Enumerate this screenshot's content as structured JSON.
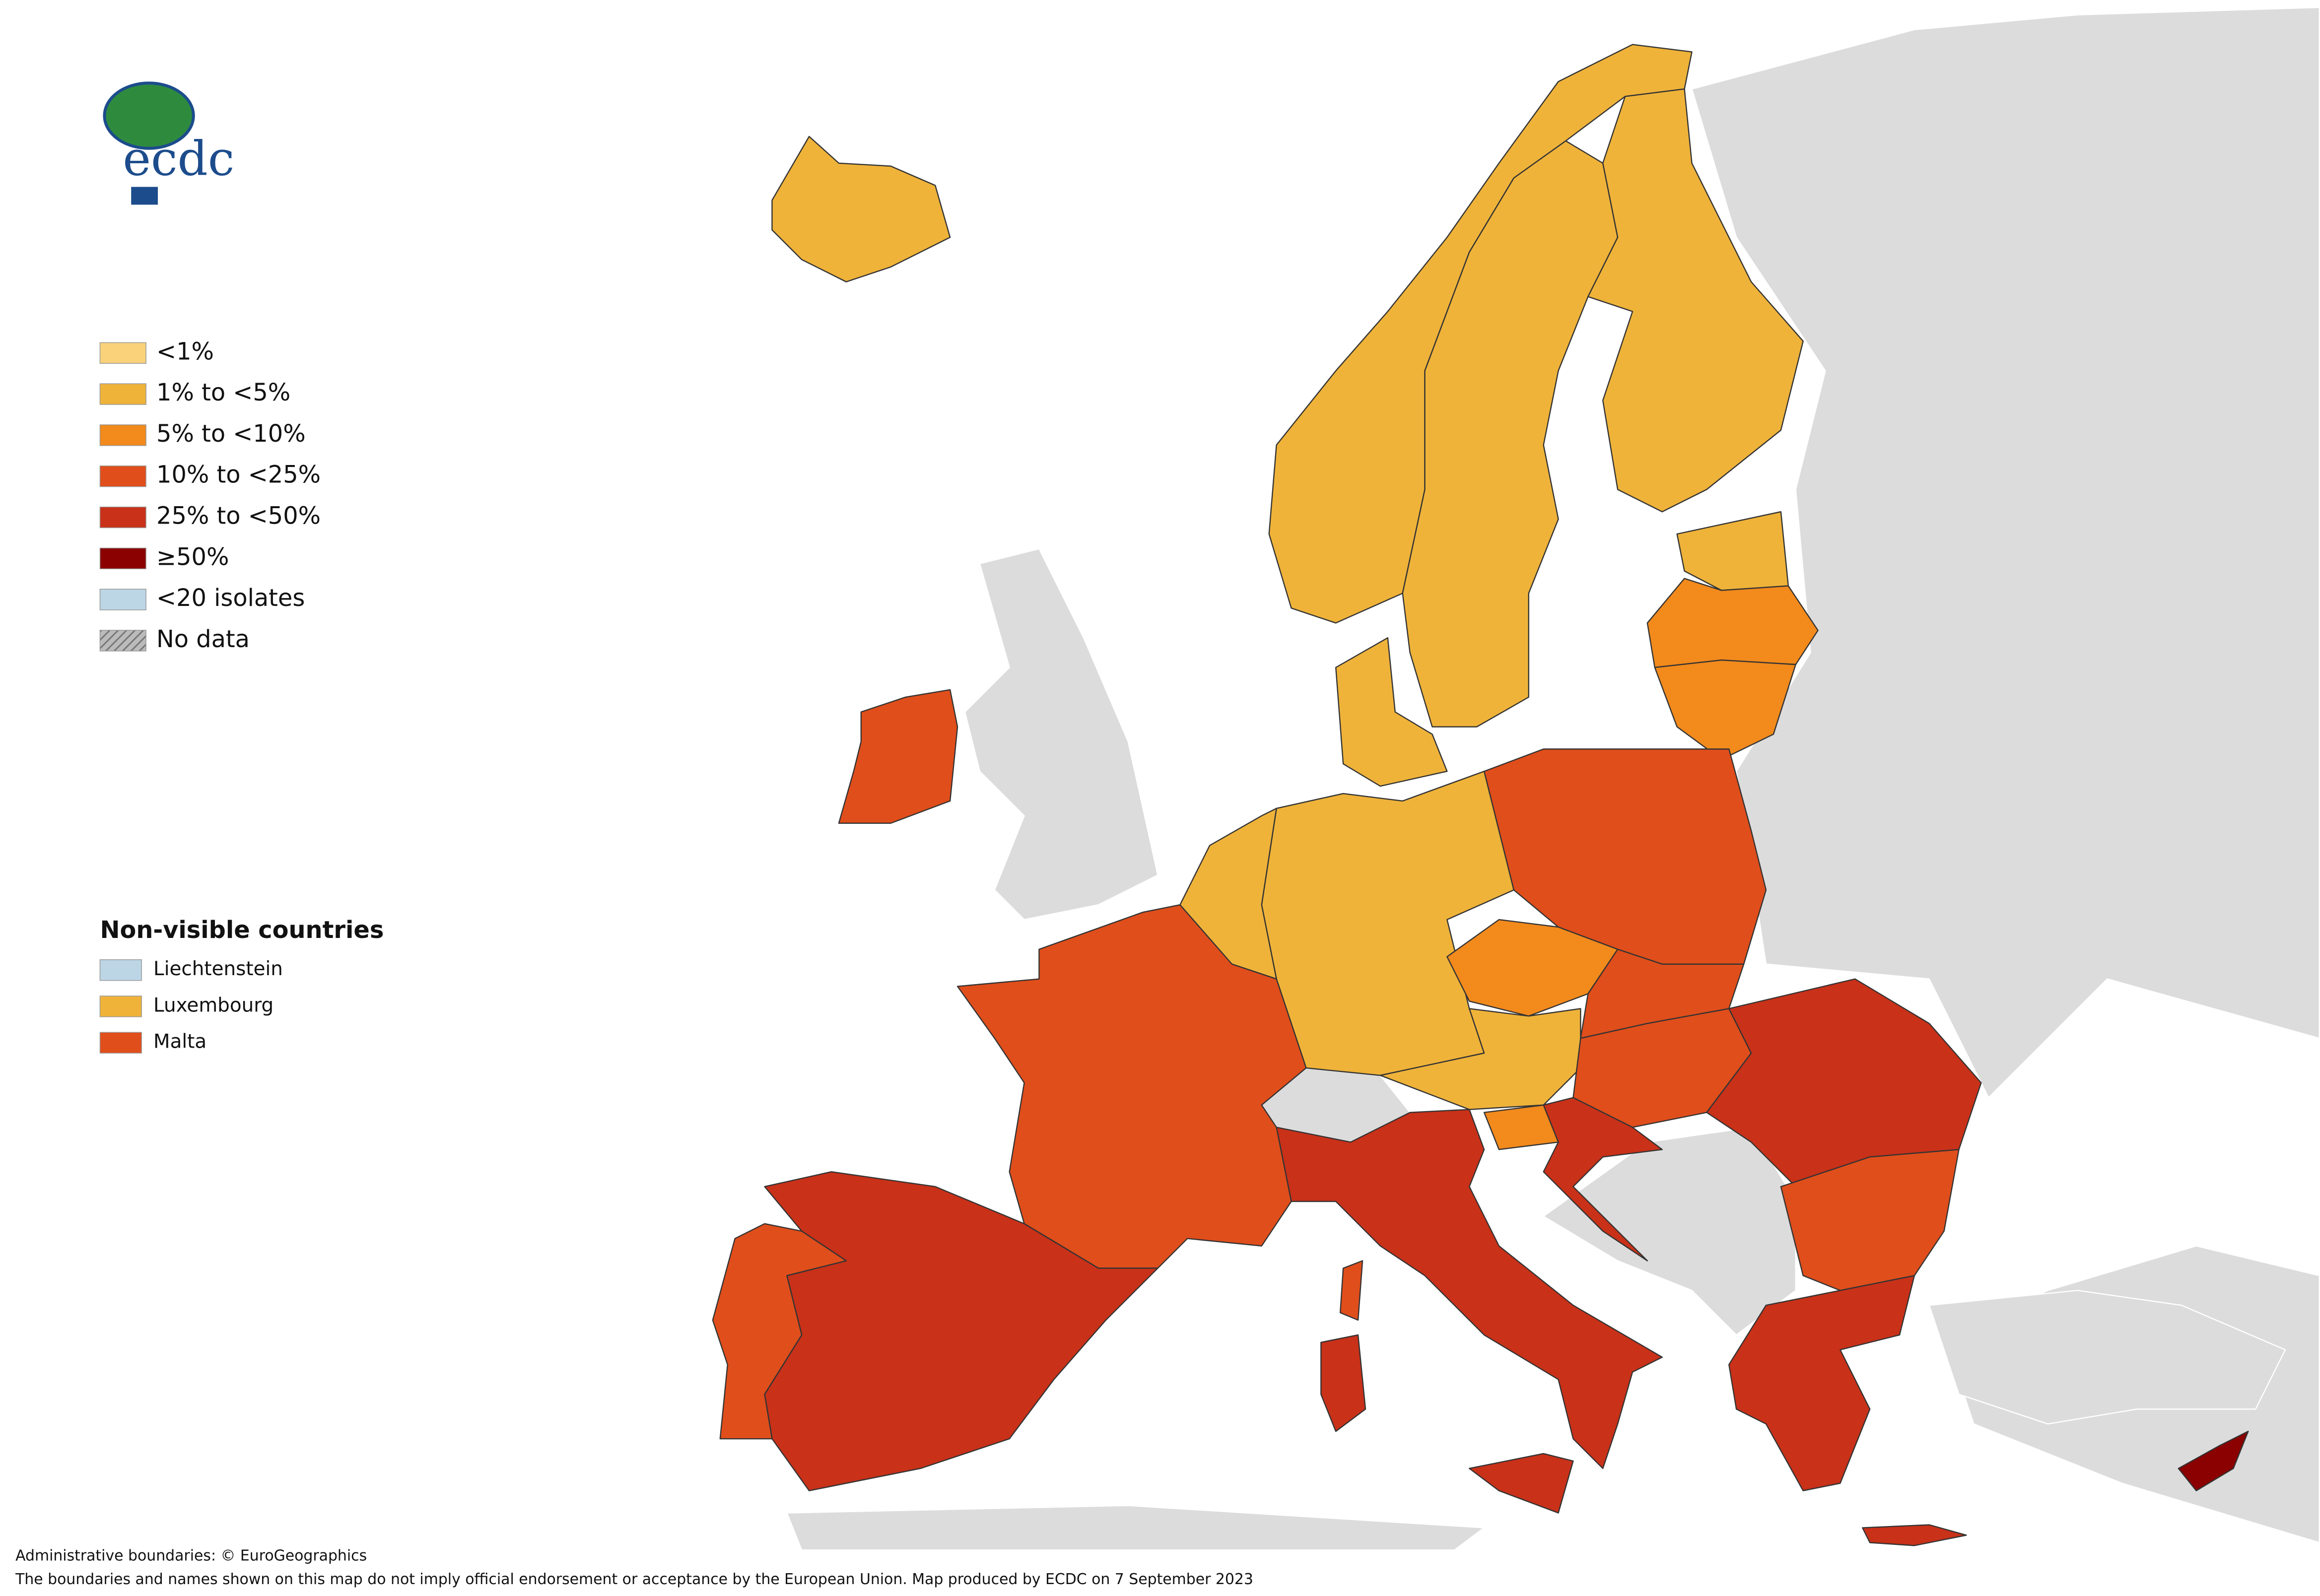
{
  "logo": {
    "text": "ecdc"
  },
  "legend": {
    "items": [
      "<1%",
      "1% to <5%",
      "5% to <10%",
      "10% to <25%",
      "25% to <50%",
      "≥50%",
      "<20 isolates",
      "No data"
    ]
  },
  "non_visible": {
    "title": "Non-visible countries",
    "items": [
      "Liechtenstein",
      "Luxembourg",
      "Malta"
    ]
  },
  "footer": {
    "line1": "Administrative boundaries: © EuroGeographics",
    "line2": "The boundaries and names shown on this map do not imply official endorsement or acceptance by the European Union. Map produced by ECDC on 7 September 2023"
  }
}
